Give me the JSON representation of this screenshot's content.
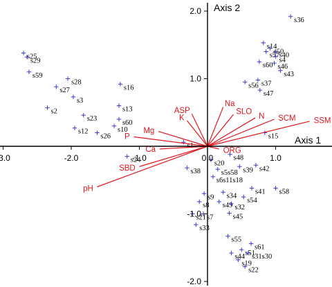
{
  "chart_data": {
    "type": "scatter",
    "subtype": "ordination biplot",
    "xlabel": "Axis 1",
    "ylabel": "Axis 2",
    "xlim": [
      -3.0,
      1.6
    ],
    "ylim": [
      -2.0,
      2.0
    ],
    "xticks": [
      -3.0,
      -2.0,
      -1.0,
      0.0,
      1.0
    ],
    "yticks": [
      2.0,
      1.0,
      -1.0,
      -2.0
    ],
    "xtick_labels": [
      "-3.0",
      "-2.0",
      "-1.0",
      "0.0",
      "1.0"
    ],
    "ytick_labels": [
      "2.0",
      "1.0",
      "-1.0",
      "-2.0"
    ],
    "colors": {
      "sites": "#3a3ad0",
      "vectors": "#e0161c",
      "axes": "#000000"
    },
    "sites": [
      {
        "name": "s36",
        "x": 1.22,
        "y": 1.92
      },
      {
        "name": "s14",
        "x": 0.82,
        "y": 1.53
      },
      {
        "name": "s50",
        "x": 0.92,
        "y": 1.45
      },
      {
        "name": "s57",
        "x": 0.86,
        "y": 1.4
      },
      {
        "name": "s40",
        "x": 1.0,
        "y": 1.4
      },
      {
        "name": "s4",
        "x": 1.0,
        "y": 1.33
      },
      {
        "name": "s60",
        "x": 0.76,
        "y": 1.25
      },
      {
        "name": "s46",
        "x": 0.98,
        "y": 1.23
      },
      {
        "name": "s43",
        "x": 1.07,
        "y": 1.12
      },
      {
        "name": "s56",
        "x": 0.55,
        "y": 0.95
      },
      {
        "name": "s37",
        "x": 0.74,
        "y": 0.98
      },
      {
        "name": "s47",
        "x": 0.77,
        "y": 0.83
      },
      {
        "name": "s15",
        "x": 0.84,
        "y": 0.2
      },
      {
        "name": "s25",
        "x": -2.7,
        "y": 1.38
      },
      {
        "name": "s29",
        "x": -2.65,
        "y": 1.32
      },
      {
        "name": "s59",
        "x": -2.62,
        "y": 1.1
      },
      {
        "name": "s28",
        "x": -2.05,
        "y": 1.0
      },
      {
        "name": "s27",
        "x": -2.22,
        "y": 0.88
      },
      {
        "name": "s3",
        "x": -1.97,
        "y": 0.73
      },
      {
        "name": "s16",
        "x": -1.28,
        "y": 0.92
      },
      {
        "name": "s2",
        "x": -2.35,
        "y": 0.57
      },
      {
        "name": "s13",
        "x": -1.3,
        "y": 0.6
      },
      {
        "name": "s23",
        "x": -1.82,
        "y": 0.46
      },
      {
        "name": "s60",
        "x": -1.3,
        "y": 0.4
      },
      {
        "name": "s10",
        "x": -1.37,
        "y": 0.3
      },
      {
        "name": "s12",
        "x": -1.95,
        "y": 0.27
      },
      {
        "name": "s26",
        "x": -1.62,
        "y": 0.2
      },
      {
        "name": "s1",
        "x": -0.35,
        "y": 0.06
      },
      {
        "name": "s24",
        "x": -1.18,
        "y": -0.15
      },
      {
        "name": "s20",
        "x": 0.05,
        "y": -0.2
      },
      {
        "name": "s48",
        "x": 0.33,
        "y": -0.12
      },
      {
        "name": "s42",
        "x": 0.71,
        "y": -0.28
      },
      {
        "name": "s39",
        "x": 0.47,
        "y": -0.3
      },
      {
        "name": "s5s58",
        "x": 0.15,
        "y": -0.34
      },
      {
        "name": "s38",
        "x": -0.3,
        "y": -0.32
      },
      {
        "name": "s6s11s18",
        "x": 0.08,
        "y": -0.45
      },
      {
        "name": "s58",
        "x": 1.0,
        "y": -0.62
      },
      {
        "name": "s41",
        "x": 0.65,
        "y": -0.62
      },
      {
        "name": "s34",
        "x": 0.23,
        "y": -0.68
      },
      {
        "name": "s54",
        "x": 0.53,
        "y": -0.75
      },
      {
        "name": "s9",
        "x": -0.05,
        "y": -0.7
      },
      {
        "name": "s8",
        "x": -0.12,
        "y": -0.82
      },
      {
        "name": "s49",
        "x": 0.17,
        "y": -0.82
      },
      {
        "name": "s32",
        "x": 0.35,
        "y": -0.85
      },
      {
        "name": "s21",
        "x": -0.22,
        "y": -1.0
      },
      {
        "name": "s7",
        "x": -0.06,
        "y": -1.0
      },
      {
        "name": "s45",
        "x": 0.32,
        "y": -0.99
      },
      {
        "name": "s33",
        "x": -0.17,
        "y": -1.16
      },
      {
        "name": "s55",
        "x": 0.3,
        "y": -1.33
      },
      {
        "name": "s61",
        "x": 0.64,
        "y": -1.44
      },
      {
        "name": "s51",
        "x": 0.5,
        "y": -1.53
      },
      {
        "name": "s44",
        "x": 0.35,
        "y": -1.58
      },
      {
        "name": "s31s30",
        "x": 0.6,
        "y": -1.58
      },
      {
        "name": "s19",
        "x": 0.45,
        "y": -1.68
      },
      {
        "name": "s22",
        "x": 0.55,
        "y": -1.78
      }
    ],
    "vectors": [
      {
        "name": "SSM",
        "x": 1.5,
        "y": 0.37
      },
      {
        "name": "SCM",
        "x": 0.98,
        "y": 0.4
      },
      {
        "name": "N",
        "x": 0.7,
        "y": 0.42
      },
      {
        "name": "SLO",
        "x": 0.38,
        "y": 0.47
      },
      {
        "name": "Na",
        "x": 0.23,
        "y": 0.58
      },
      {
        "name": "ASP",
        "x": -0.23,
        "y": 0.48
      },
      {
        "name": "K",
        "x": -0.3,
        "y": 0.38
      },
      {
        "name": "Mg",
        "x": -0.72,
        "y": 0.22
      },
      {
        "name": "P",
        "x": -1.08,
        "y": 0.14
      },
      {
        "name": "Ca",
        "x": -0.7,
        "y": -0.04
      },
      {
        "name": "ORG",
        "x": 0.17,
        "y": -0.04
      },
      {
        "name": "SBD",
        "x": -1.0,
        "y": -0.3
      },
      {
        "name": "pH",
        "x": -1.62,
        "y": -0.6
      }
    ]
  }
}
